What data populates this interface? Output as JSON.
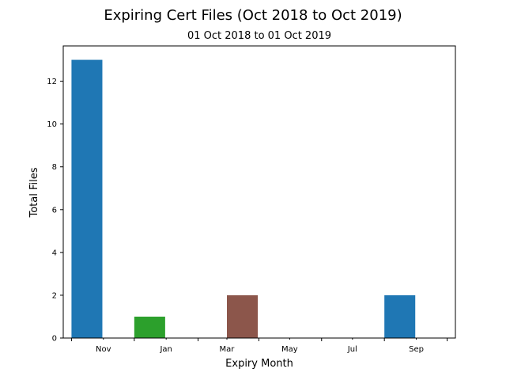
{
  "chart_data": {
    "type": "bar",
    "title": "Expiring Cert Files (Oct 2018 to Oct 2019)",
    "subtitle": "01 Oct 2018 to 01 Oct 2019",
    "xlabel": "Expiry Month",
    "ylabel": "Total Files",
    "x_range": [
      "2018-09-23",
      "2019-10-09"
    ],
    "ylim": [
      0,
      13.65
    ],
    "yticks": [
      0,
      2,
      4,
      6,
      8,
      10,
      12
    ],
    "xticks_major": [
      "2018-10-01",
      "2018-12-01",
      "2019-02-01",
      "2019-04-01",
      "2019-06-01",
      "2019-08-01",
      "2019-10-01"
    ],
    "xtick_labels": [
      {
        "label": "Nov",
        "month": "2018-11"
      },
      {
        "label": "Jan",
        "month": "2019-01"
      },
      {
        "label": "Mar",
        "month": "2019-03"
      },
      {
        "label": "May",
        "month": "2019-05"
      },
      {
        "label": "Jul",
        "month": "2019-07"
      },
      {
        "label": "Sep",
        "month": "2019-09"
      }
    ],
    "grid": false,
    "bars": [
      {
        "start": "2018-10-01",
        "end": "2018-10-31",
        "value": 13,
        "color": "#1f77b4"
      },
      {
        "start": "2018-12-01",
        "end": "2018-12-31",
        "value": 1,
        "color": "#2ca02c"
      },
      {
        "start": "2019-03-01",
        "end": "2019-03-31",
        "value": 2,
        "color": "#8c564b"
      },
      {
        "start": "2019-08-01",
        "end": "2019-08-31",
        "value": 2,
        "color": "#1f77b4"
      }
    ]
  }
}
